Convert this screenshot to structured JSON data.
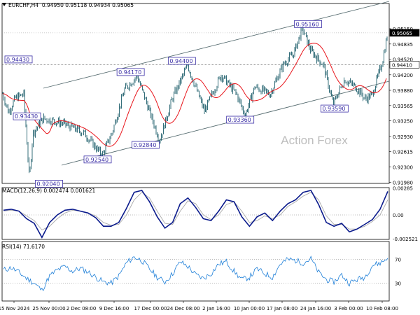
{
  "chart_data": [
    {
      "type": "candlestick",
      "symbol": "EURCHF,H4",
      "header": {
        "symbol": "EURCHF,H4",
        "open": "0.94950",
        "high": "0.95118",
        "low": "0.94934",
        "close": "0.95065"
      },
      "watermark": "Action Forex",
      "ylim": [
        0.9196,
        0.9567
      ],
      "y_ticks": [
        "0.95150",
        "0.94835",
        "0.94520",
        "0.94200",
        "0.93880",
        "0.93565",
        "0.93250",
        "0.92930",
        "0.92615",
        "0.92300",
        "0.91980"
      ],
      "x_ticks": [
        "15 Nov 2024",
        "25 Nov 00:00",
        "2 Dec 08:00",
        "9 Dec 16:00",
        "17 Dec 00:00",
        "24 Dec 08:00",
        "2 Jan 16:00",
        "10 Jan 00:00",
        "17 Jan 08:00",
        "24 Jan 16:00",
        "3 Feb 00:00",
        "10 Feb 08:00"
      ],
      "last_price_tag": "0.95065",
      "level_tag": "0.94410",
      "series": [
        {
          "name": "",
          "kind": "moving-average",
          "color": "#e8151b"
        },
        {
          "name": "",
          "kind": "upper-channel",
          "color": "#556b6f"
        },
        {
          "name": "",
          "kind": "lower-channel",
          "color": "#556b6f"
        }
      ],
      "annotations": [
        {
          "text": "0.94430",
          "x": "15 Nov 2024",
          "y": 0.9443
        },
        {
          "text": "0.93430",
          "x": "18 Nov 2024",
          "y": 0.9343
        },
        {
          "text": "0.92040",
          "x": "25 Nov 2024",
          "y": 0.9204
        },
        {
          "text": "0.92540",
          "x": "6 Dec 2024",
          "y": 0.9254
        },
        {
          "text": "0.94170",
          "x": "13 Dec 2024",
          "y": 0.9417
        },
        {
          "text": "0.92840",
          "x": "16 Dec 2024",
          "y": 0.9284
        },
        {
          "text": "0.94400",
          "x": "24 Dec 2024",
          "y": 0.944
        },
        {
          "text": "0.93360",
          "x": "8 Jan 2025",
          "y": 0.9336
        },
        {
          "text": "0.95160",
          "x": "23 Jan 2025",
          "y": 0.9516
        },
        {
          "text": "0.93590",
          "x": "30 Jan 2025",
          "y": 0.9359
        }
      ]
    },
    {
      "type": "line",
      "title": "MACD(12,26,9) 0.002474 0.001621",
      "ylim": [
        -0.0026,
        0.0029
      ],
      "y_ticks": [
        "0.00285",
        "0.00",
        "-0.002521"
      ],
      "zero_line": true,
      "series": [
        {
          "name": "",
          "color": "#0a1a8c",
          "values": [
            0.0005,
            0.0006,
            0.0004,
            -0.0004,
            -0.0009,
            -0.0024,
            -0.0008,
            0.0,
            0.0005,
            0.0006,
            0.0004,
            0.0002,
            -0.0003,
            -0.0012,
            -0.0012,
            -0.0008,
            0.0007,
            0.0024,
            0.0026,
            0.0014,
            -0.0002,
            -0.0014,
            -0.0008,
            0.0012,
            0.0018,
            0.0008,
            -0.0004,
            -0.0006,
            0.0004,
            0.0016,
            0.0014,
            -0.0002,
            -0.0012,
            -0.0002,
            0.0002,
            -0.0006,
            0.0004,
            0.0012,
            0.0016,
            0.0024,
            0.0026,
            0.0011,
            -0.0008,
            -0.0012,
            -0.0009,
            -0.0018,
            -0.0015,
            -0.001,
            -0.0005,
            0.0006,
            0.0025
          ]
        },
        {
          "name": "",
          "color": "#aaaaaa",
          "values": [
            0.0004,
            0.0005,
            0.0004,
            -0.0001,
            -0.0006,
            -0.0016,
            -0.0012,
            -0.0004,
            0.0002,
            0.0005,
            0.0004,
            0.0002,
            -0.0001,
            -0.0008,
            -0.0011,
            -0.001,
            0.0,
            0.0016,
            0.0024,
            0.0018,
            0.0004,
            -0.0009,
            -0.001,
            0.0004,
            0.0015,
            0.0012,
            0.0,
            -0.0005,
            0.0,
            0.0011,
            0.0014,
            0.0004,
            -0.0008,
            -0.0006,
            -0.0001,
            -0.0004,
            0.0,
            0.0009,
            0.0014,
            0.002,
            0.0024,
            0.0016,
            -0.0001,
            -0.001,
            -0.001,
            -0.0015,
            -0.0015,
            -0.0012,
            -0.0007,
            0.0,
            0.0016
          ]
        }
      ]
    },
    {
      "type": "line",
      "title": "RSI(14) 71.6170",
      "ylim": [
        0,
        100
      ],
      "y_ticks": [
        "70",
        "30"
      ],
      "reference_lines": [
        70,
        30
      ],
      "series": [
        {
          "name": "",
          "color": "#1e7fd8",
          "values": [
            52,
            56,
            48,
            38,
            30,
            18,
            42,
            52,
            58,
            50,
            55,
            49,
            40,
            32,
            30,
            42,
            64,
            74,
            68,
            54,
            40,
            32,
            46,
            66,
            58,
            44,
            38,
            46,
            62,
            66,
            50,
            36,
            40,
            54,
            46,
            40,
            62,
            70,
            68,
            64,
            71,
            48,
            36,
            32,
            44,
            30,
            36,
            40,
            60,
            64,
            72
          ]
        }
      ]
    }
  ]
}
